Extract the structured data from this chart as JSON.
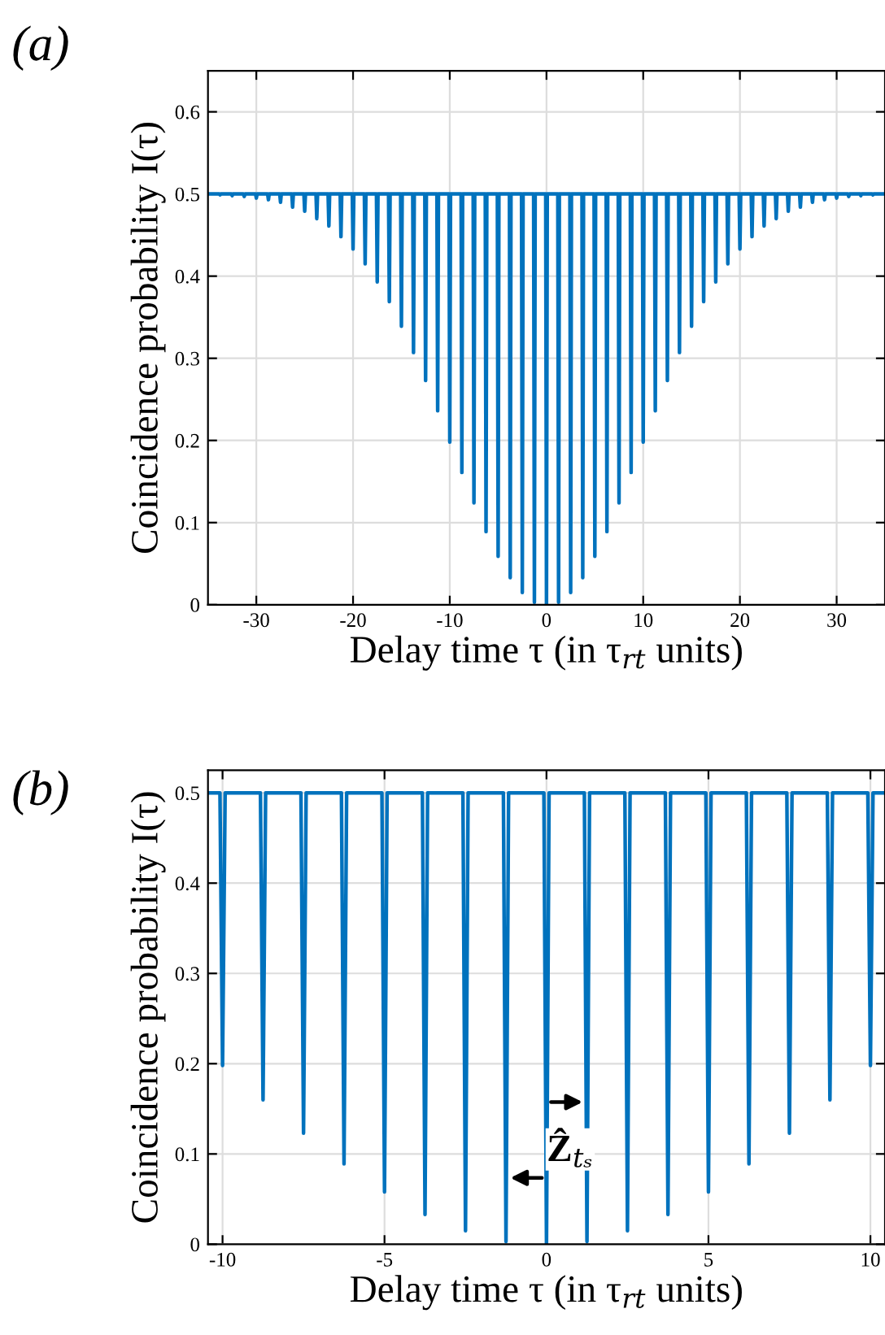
{
  "chart_data": [
    {
      "type": "line",
      "title": "(a)",
      "xlabel": "Delay time τ (in τ$_{rt}$ units)",
      "ylabel": "Coincidence probability I(τ)",
      "series": [
        {
          "color": "#0072bd",
          "x": [
            -35,
            -33.83,
            -33.75,
            -33.67,
            -32.58,
            -32.5,
            -32.42,
            -31.33,
            -31.25,
            -31.17,
            -30.08,
            -30,
            -29.92,
            -28.83,
            -28.75,
            -28.67,
            -27.58,
            -27.5,
            -27.42,
            -26.33,
            -26.25,
            -26.17,
            -25.08,
            -25,
            -24.92,
            -23.83,
            -23.75,
            -23.67,
            -22.58,
            -22.5,
            -22.42,
            -21.33,
            -21.25,
            -21.17,
            -20.08,
            -20,
            -19.92,
            -18.83,
            -18.75,
            -18.67,
            -17.58,
            -17.5,
            -17.42,
            -16.33,
            -16.25,
            -16.17,
            -15.08,
            -15,
            -14.92,
            -13.83,
            -13.75,
            -13.67,
            -12.58,
            -12.5,
            -12.42,
            -11.33,
            -11.25,
            -11.17,
            -10.08,
            -10,
            -9.92,
            -8.83,
            -8.75,
            -8.67,
            -7.58,
            -7.5,
            -7.42,
            -6.33,
            -6.25,
            -6.17,
            -5.08,
            -5,
            -4.92,
            -3.83,
            -3.75,
            -3.67,
            -2.58,
            -2.5,
            -2.42,
            -1.33,
            -1.25,
            -1.17,
            -0.08,
            0,
            0.08,
            1.17,
            1.25,
            1.33,
            2.42,
            2.5,
            2.58,
            3.67,
            3.75,
            3.83,
            4.92,
            5,
            5.08,
            6.17,
            6.25,
            6.33,
            7.42,
            7.5,
            7.58,
            8.67,
            8.75,
            8.83,
            9.92,
            10,
            10.08,
            11.17,
            11.25,
            11.33,
            12.42,
            12.5,
            12.58,
            13.67,
            13.75,
            13.83,
            14.92,
            15,
            15.08,
            16.17,
            16.25,
            16.33,
            17.42,
            17.5,
            17.58,
            18.67,
            18.75,
            18.83,
            19.92,
            20,
            20.08,
            21.17,
            21.25,
            21.33,
            22.42,
            22.5,
            22.58,
            23.67,
            23.75,
            23.83,
            24.92,
            25,
            25.08,
            26.17,
            26.25,
            26.33,
            27.42,
            27.5,
            27.58,
            28.67,
            28.75,
            28.83,
            29.92,
            30,
            30.08,
            31.17,
            31.25,
            31.33,
            32.42,
            32.5,
            32.58,
            33.67,
            33.75,
            33.83,
            35
          ],
          "values": [
            0.5,
            0.5,
            0.499,
            0.5,
            0.5,
            0.498,
            0.5,
            0.5,
            0.497,
            0.5,
            0.5,
            0.495,
            0.5,
            0.5,
            0.493,
            0.5,
            0.5,
            0.49,
            0.5,
            0.5,
            0.484,
            0.5,
            0.5,
            0.479,
            0.5,
            0.5,
            0.47,
            0.5,
            0.5,
            0.461,
            0.5,
            0.5,
            0.448,
            0.5,
            0.5,
            0.433,
            0.5,
            0.5,
            0.415,
            0.5,
            0.5,
            0.393,
            0.5,
            0.5,
            0.369,
            0.5,
            0.5,
            0.339,
            0.5,
            0.5,
            0.307,
            0.5,
            0.5,
            0.273,
            0.5,
            0.5,
            0.236,
            0.5,
            0.5,
            0.198,
            0.5,
            0.5,
            0.161,
            0.5,
            0.5,
            0.124,
            0.5,
            0.5,
            0.089,
            0.5,
            0.5,
            0.059,
            0.5,
            0.5,
            0.033,
            0.5,
            0.5,
            0.015,
            0.5,
            0.5,
            0.003,
            0.5,
            0.5,
            0,
            0.5,
            0.5,
            0.003,
            0.5,
            0.5,
            0.015,
            0.5,
            0.5,
            0.033,
            0.5,
            0.5,
            0.059,
            0.5,
            0.5,
            0.089,
            0.5,
            0.5,
            0.124,
            0.5,
            0.5,
            0.161,
            0.5,
            0.5,
            0.198,
            0.5,
            0.5,
            0.236,
            0.5,
            0.5,
            0.273,
            0.5,
            0.5,
            0.307,
            0.5,
            0.5,
            0.339,
            0.5,
            0.5,
            0.369,
            0.5,
            0.5,
            0.393,
            0.5,
            0.5,
            0.415,
            0.5,
            0.5,
            0.433,
            0.5,
            0.5,
            0.448,
            0.5,
            0.5,
            0.461,
            0.5,
            0.5,
            0.47,
            0.5,
            0.5,
            0.479,
            0.5,
            0.5,
            0.484,
            0.5,
            0.5,
            0.49,
            0.5,
            0.5,
            0.493,
            0.5,
            0.5,
            0.495,
            0.5,
            0.5,
            0.497,
            0.5,
            0.5,
            0.498,
            0.5,
            0.5,
            0.499,
            0.5,
            0.5
          ]
        }
      ],
      "xlim": [
        -35,
        35
      ],
      "xticks": [
        {
          "value": -30,
          "label": "-30"
        },
        {
          "value": -20,
          "label": "-20"
        },
        {
          "value": -10,
          "label": "-10"
        },
        0,
        10,
        20,
        30
      ],
      "ylim": [
        0,
        0.65
      ],
      "yticks": [
        0,
        0.1,
        0.2,
        0.3,
        0.4,
        0.5,
        0.6
      ],
      "grid": true,
      "marker": "none",
      "line_style": "solid"
    },
    {
      "type": "line",
      "title": "(b)",
      "xlabel": "Delay time τ (in τ$_{rt}$ units)",
      "ylabel": "Coincidence probability I(τ)",
      "annotations": [
        "Ẑ$_{tₛ}$"
      ],
      "series": [
        {
          "color": "#0072bd",
          "x": [
            -10.45,
            -10.08,
            -10,
            -9.92,
            -8.83,
            -8.75,
            -8.67,
            -7.58,
            -7.5,
            -7.42,
            -6.33,
            -6.25,
            -6.17,
            -5.08,
            -5,
            -4.92,
            -3.83,
            -3.75,
            -3.67,
            -2.58,
            -2.5,
            -2.42,
            -1.33,
            -1.25,
            -1.17,
            -0.08,
            0,
            0.08,
            1.17,
            1.25,
            1.33,
            2.42,
            2.5,
            2.58,
            3.67,
            3.75,
            3.83,
            4.92,
            5,
            5.08,
            6.17,
            6.25,
            6.33,
            7.42,
            7.5,
            7.58,
            8.67,
            8.75,
            8.83,
            9.92,
            10,
            10.08,
            10.45
          ],
          "values": [
            0.5,
            0.5,
            0.198,
            0.5,
            0.5,
            0.16,
            0.5,
            0.5,
            0.123,
            0.5,
            0.5,
            0.089,
            0.5,
            0.5,
            0.058,
            0.5,
            0.5,
            0.033,
            0.5,
            0.5,
            0.015,
            0.5,
            0.5,
            0.003,
            0.5,
            0.5,
            0,
            0.5,
            0.5,
            0.003,
            0.5,
            0.5,
            0.015,
            0.5,
            0.5,
            0.033,
            0.5,
            0.5,
            0.058,
            0.5,
            0.5,
            0.089,
            0.5,
            0.5,
            0.123,
            0.5,
            0.5,
            0.16,
            0.5,
            0.5,
            0.198,
            0.5,
            0.5
          ]
        }
      ],
      "xlim": [
        -10.45,
        10.45
      ],
      "xticks": [
        {
          "value": -10,
          "label": "-10"
        },
        {
          "value": -5,
          "label": "-5"
        },
        0,
        5,
        10
      ],
      "ylim": [
        0,
        0.525
      ],
      "yticks": [
        0,
        0.1,
        0.2,
        0.3,
        0.4,
        0.5
      ],
      "grid": true,
      "marker": "none",
      "line_style": "solid"
    }
  ]
}
